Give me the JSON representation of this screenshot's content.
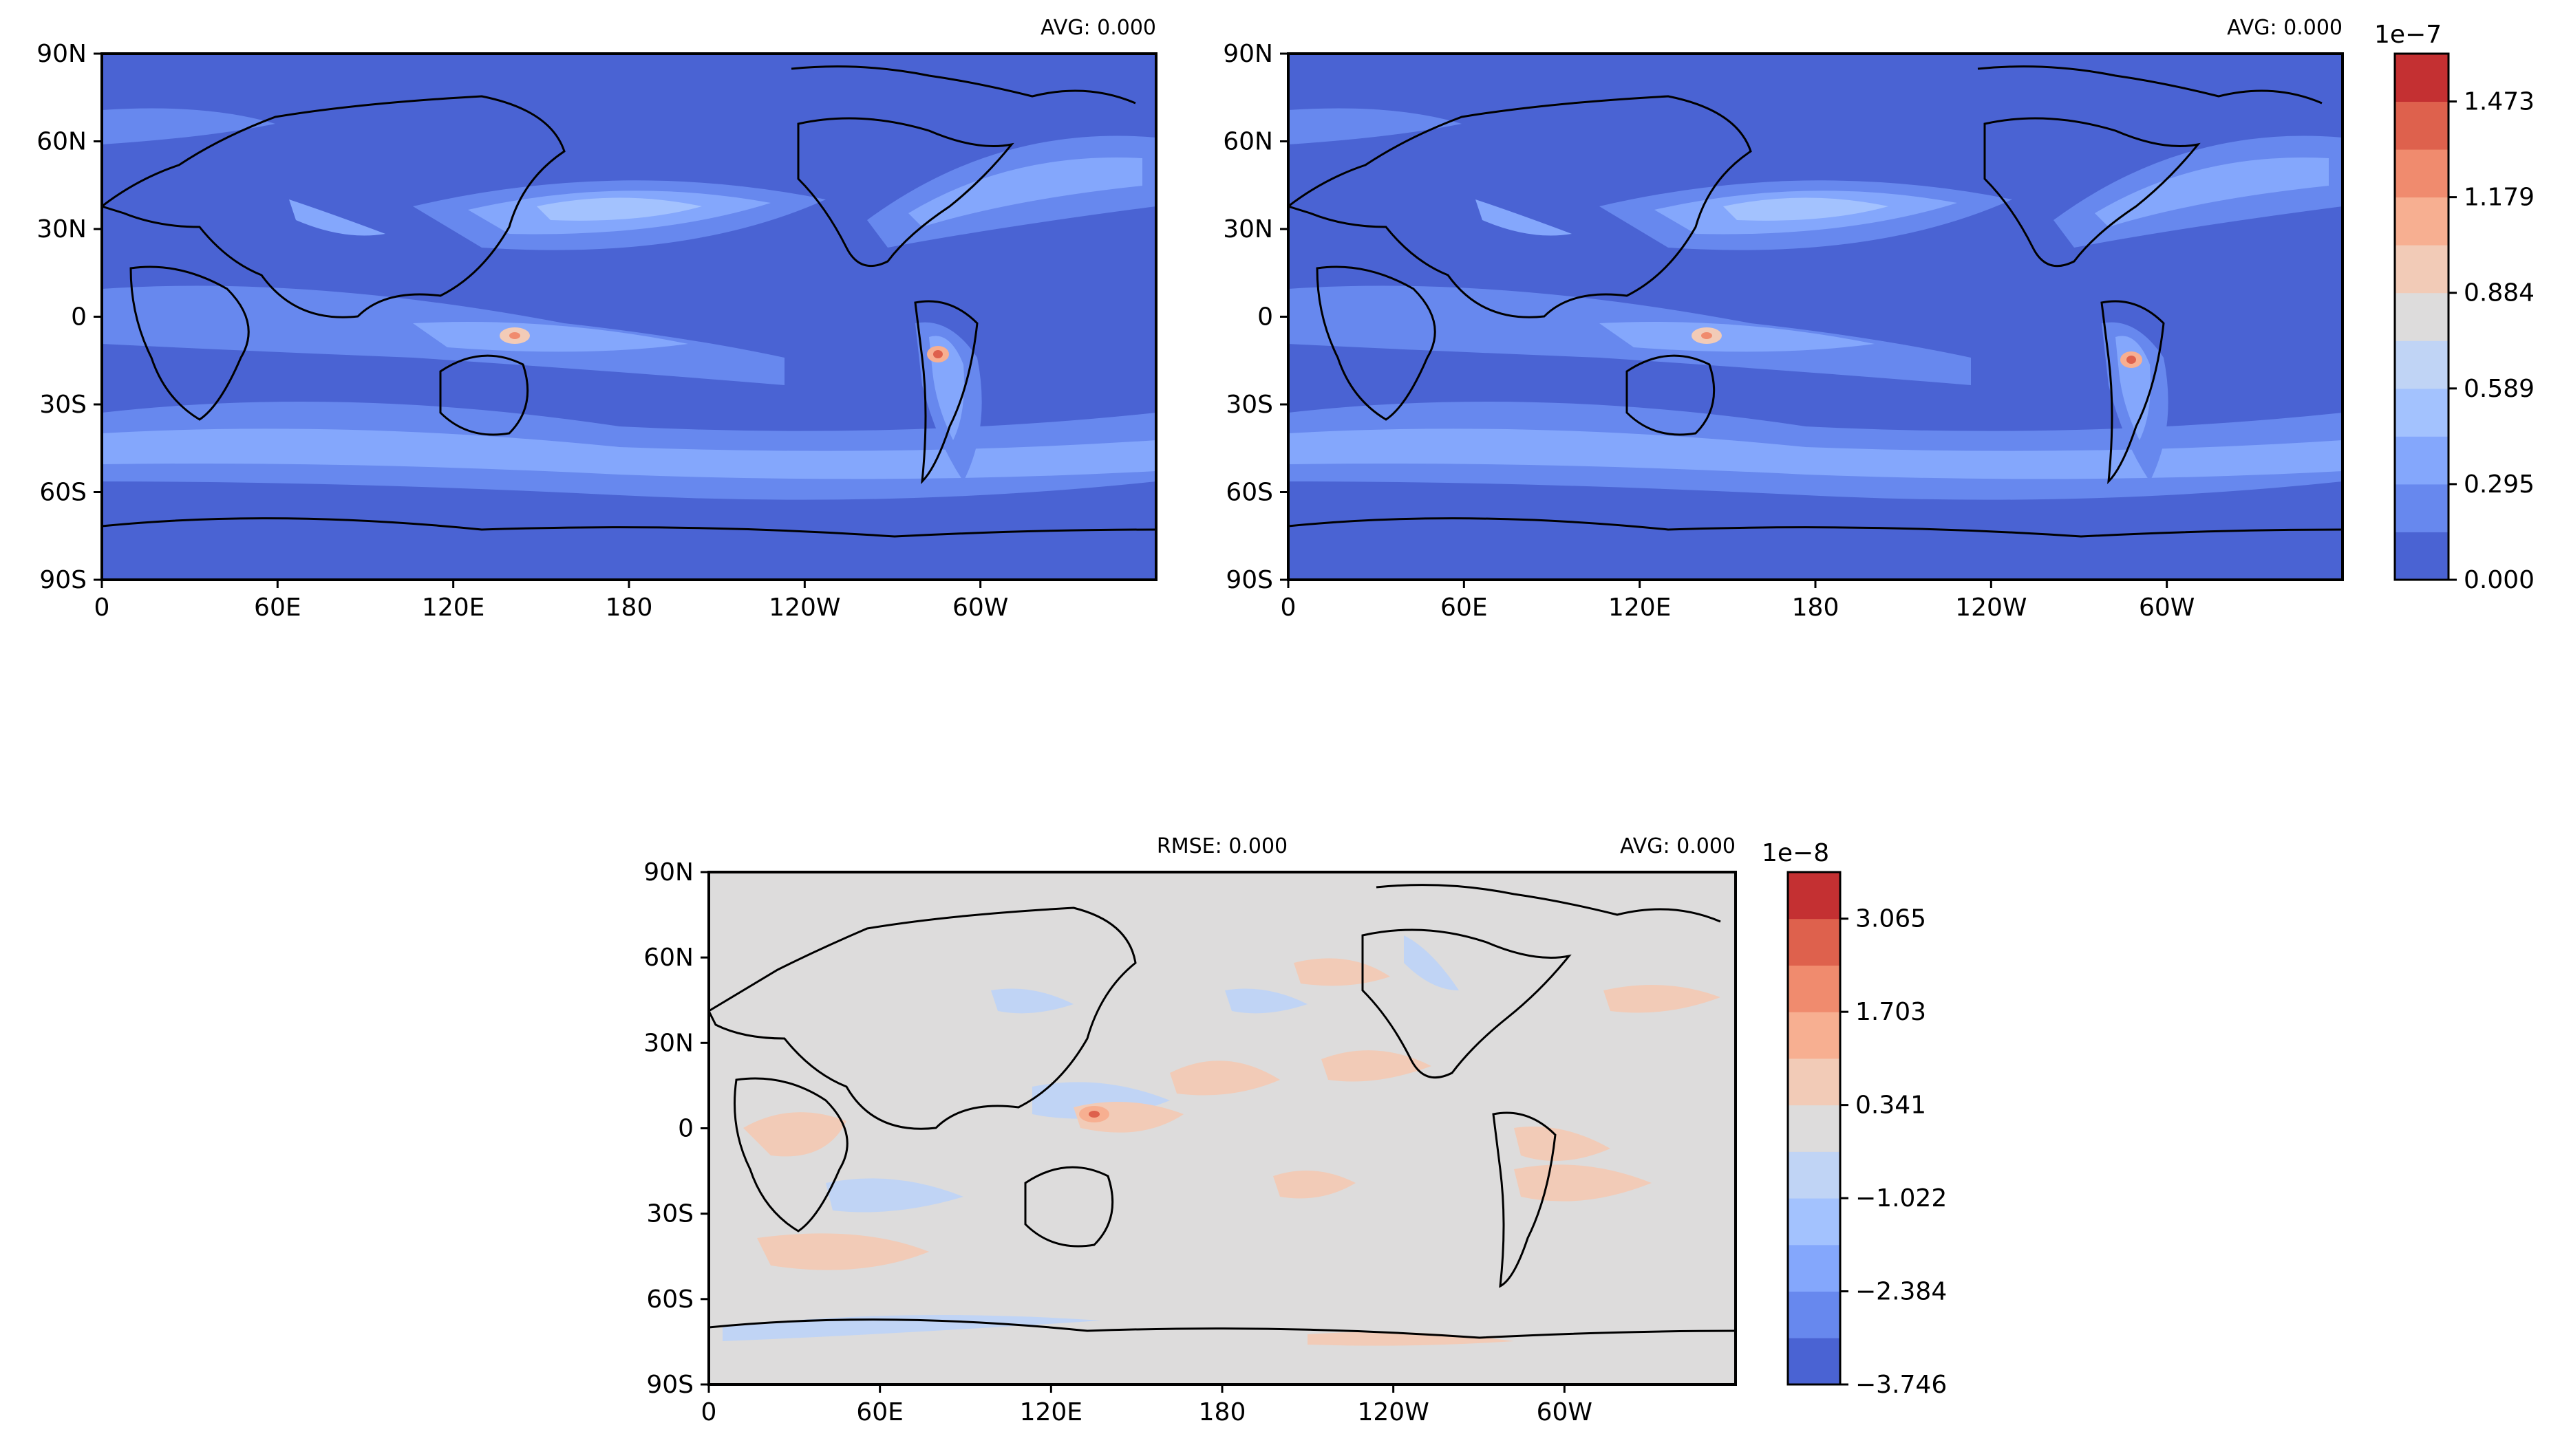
{
  "chart_data": [
    {
      "type": "heatmap",
      "panel": "top-left",
      "annotations": {
        "avg": "AVG: 0.000"
      },
      "x_ticks": [
        "0",
        "60E",
        "120E",
        "180",
        "120W",
        "60W"
      ],
      "y_ticks": [
        "90N",
        "60N",
        "30N",
        "0",
        "30S",
        "60S",
        "90S"
      ],
      "xlim": [
        0,
        360
      ],
      "ylim": [
        -90,
        90
      ],
      "colormap": "coolwarm",
      "colorbar": "shared-right"
    },
    {
      "type": "heatmap",
      "panel": "top-right",
      "annotations": {
        "avg": "AVG: 0.000"
      },
      "x_ticks": [
        "0",
        "60E",
        "120E",
        "180",
        "120W",
        "60W"
      ],
      "y_ticks": [
        "90N",
        "60N",
        "30N",
        "0",
        "30S",
        "60S",
        "90S"
      ],
      "xlim": [
        0,
        360
      ],
      "ylim": [
        -90,
        90
      ],
      "colormap": "coolwarm",
      "colorbar": {
        "exponent": "1e−7",
        "tick_labels": [
          "0.000",
          "0.295",
          "0.589",
          "0.884",
          "1.179",
          "1.473"
        ],
        "levels": 11,
        "colors": [
          "#4a63d3",
          "#6788ee",
          "#84a7fc",
          "#a3c2fe",
          "#c0d4f5",
          "#dddcdc",
          "#f2cbb7",
          "#f7af91",
          "#f08b6e",
          "#de614d",
          "#c43032"
        ]
      }
    },
    {
      "type": "heatmap",
      "panel": "bottom",
      "annotations": {
        "rmse": "RMSE: 0.000",
        "avg": "AVG: 0.000"
      },
      "x_ticks": [
        "0",
        "60E",
        "120E",
        "180",
        "120W",
        "60W"
      ],
      "y_ticks": [
        "90N",
        "60N",
        "30N",
        "0",
        "30S",
        "60S",
        "90S"
      ],
      "xlim": [
        0,
        360
      ],
      "ylim": [
        -90,
        90
      ],
      "colormap": "coolwarm",
      "colorbar": {
        "exponent": "1e−8",
        "tick_labels": [
          "−3.746",
          "−2.384",
          "−1.022",
          "0.341",
          "1.703",
          "3.065"
        ],
        "levels": 11,
        "colors": [
          "#4a63d3",
          "#6788ee",
          "#84a7fc",
          "#a3c2fe",
          "#c0d4f5",
          "#dddcdc",
          "#f2cbb7",
          "#f7af91",
          "#f08b6e",
          "#de614d",
          "#c43032"
        ]
      }
    }
  ]
}
